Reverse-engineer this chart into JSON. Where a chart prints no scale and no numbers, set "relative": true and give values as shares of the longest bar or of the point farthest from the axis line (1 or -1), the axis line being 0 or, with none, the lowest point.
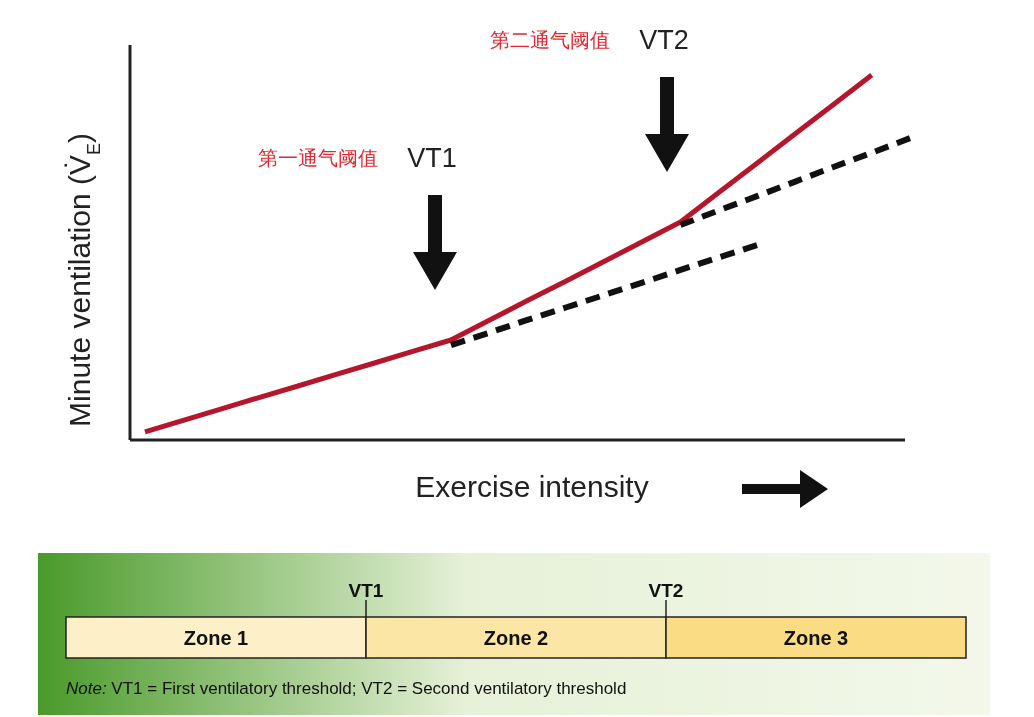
{
  "chart_data": [
    {
      "type": "line",
      "relative": true,
      "xlabel": "Exercise intensity",
      "ylabel": "Minute ventilation (V̇$_{E}$)",
      "grid": false,
      "categories": [
        null,
        null,
        null,
        null,
        null,
        null,
        null,
        null,
        null,
        null,
        null,
        null,
        null,
        null,
        null,
        null,
        null,
        null,
        null,
        null,
        null
      ],
      "series": [
        {
          "color": "#b5162b",
          "line_style": "solid",
          "values": [
            0.022,
            0.054,
            0.085,
            0.117,
            0.148,
            0.18,
            0.211,
            0.243,
            0.274,
            0.328,
            0.382,
            0.435,
            0.489,
            0.543,
            0.597,
            0.678,
            0.758,
            0.839,
            0.919,
            1,
            null
          ]
        },
        {
          "color": "#111111",
          "line_style": "dashed",
          "values": [
            null,
            null,
            null,
            null,
            null,
            null,
            null,
            null,
            0.26,
            0.294,
            0.329,
            0.363,
            0.397,
            0.431,
            0.466,
            0.5,
            0.534,
            null,
            null,
            null,
            null
          ]
        },
        {
          "color": "#111111",
          "line_style": "dashed",
          "values": [
            null,
            null,
            null,
            null,
            null,
            null,
            null,
            null,
            null,
            null,
            null,
            null,
            null,
            null,
            0.589,
            0.629,
            0.668,
            0.708,
            0.748,
            0.787,
            0.827
          ]
        }
      ],
      "annotations": [
        "第一通气阈值",
        "VT1",
        "第二通气阈值",
        "VT2"
      ]
    },
    {
      "type": "other",
      "categories": [
        "Zone 1",
        "Zone 2",
        "Zone 3"
      ],
      "colors": [
        "#fdf0c8",
        "#fbe6a6",
        "#f9dc84"
      ],
      "annotations": [
        "VT1",
        "VT2",
        "Note: VT1 = First ventilatory threshold; VT2 = Second ventilatory threshold"
      ]
    }
  ]
}
